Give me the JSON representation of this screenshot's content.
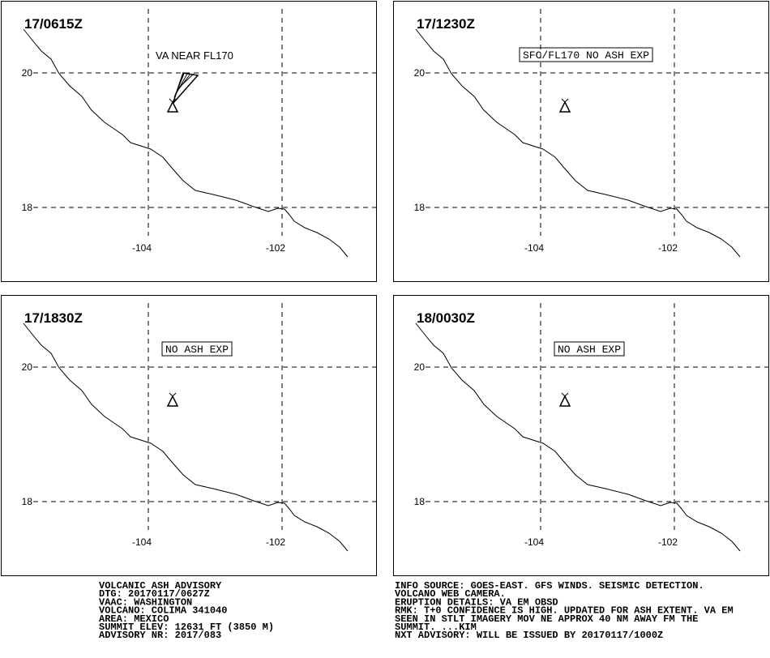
{
  "panels": [
    {
      "time": "17/0615Z",
      "annotation": "VA NEAR FL170"
    },
    {
      "time": "17/1230Z",
      "annotation": "SFC/FL170 NO ASH EXP"
    },
    {
      "time": "17/1830Z",
      "annotation": "NO ASH EXP"
    },
    {
      "time": "18/0030Z",
      "annotation": "NO ASH EXP"
    }
  ],
  "grid_labels": {
    "lat": [
      "20",
      "18"
    ],
    "lon": [
      "-104",
      "-102"
    ]
  },
  "advisory": {
    "left": [
      "VOLCANIC ASH ADVISORY",
      "DTG: 20170117/0627Z",
      "VAAC: WASHINGTON",
      "VOLCANO: COLIMA 341040",
      "AREA: MEXICO",
      "SUMMIT ELEV: 12631 FT (3850 M)",
      "ADVISORY NR: 2017/083"
    ],
    "right": [
      "INFO SOURCE: GOES-EAST. GFS WINDS. SEISMIC DETECTION.",
      "VOLCANO WEB CAMERA.",
      "ERUPTION DETAILS: VA EM OBSD",
      "RMK: T+0 CONFIDENCE IS HIGH. UPDATED FOR ASH EXTENT. VA EM",
      "SEEN IN STLT IMAGERY MOV NE APPROX 40 NM AWAY FM THE",
      "SUMMIT. ...KIM",
      "NXT ADVISORY: WILL BE ISSUED BY 20170117/1000Z"
    ]
  }
}
